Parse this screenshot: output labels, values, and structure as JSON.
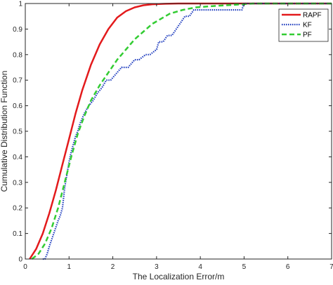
{
  "chart_data": {
    "type": "line",
    "title": "",
    "xlabel": "The Localization Error/m",
    "ylabel": "Cumulative Distribution Function",
    "xlim": [
      0,
      7
    ],
    "ylim": [
      0,
      1
    ],
    "xticks": [
      0,
      1,
      2,
      3,
      4,
      5,
      6,
      7
    ],
    "yticks": [
      0,
      0.1,
      0.2,
      0.3,
      0.4,
      0.5,
      0.6,
      0.7,
      0.8,
      0.9,
      1
    ],
    "grid": false,
    "legend_position": "top-right",
    "series": [
      {
        "name": "RAPF",
        "color": "#e31a1c",
        "style": "solid",
        "x": [
          0.1,
          0.25,
          0.4,
          0.55,
          0.7,
          0.85,
          1.0,
          1.15,
          1.3,
          1.5,
          1.7,
          1.9,
          2.1,
          2.3,
          2.5,
          2.7,
          2.9,
          3.2,
          3.5,
          4.0,
          5.0,
          7.0
        ],
        "y": [
          0.0,
          0.04,
          0.1,
          0.18,
          0.27,
          0.37,
          0.47,
          0.57,
          0.66,
          0.76,
          0.84,
          0.9,
          0.945,
          0.97,
          0.985,
          0.993,
          0.997,
          0.999,
          1.0,
          1.0,
          1.0,
          1.0
        ]
      },
      {
        "name": "KF",
        "color": "#1f3dbf",
        "style": "dotted",
        "x": [
          0.4,
          0.45,
          0.5,
          0.55,
          0.6,
          0.65,
          0.7,
          0.75,
          0.8,
          0.85,
          0.9,
          0.95,
          1.0,
          1.05,
          1.1,
          1.15,
          1.2,
          1.25,
          1.3,
          1.35,
          1.45,
          1.55,
          1.65,
          1.75,
          1.85,
          1.95,
          2.05,
          2.1,
          2.2,
          2.35,
          2.5,
          2.6,
          2.75,
          2.85,
          3.0,
          3.05,
          3.15,
          3.25,
          3.35,
          3.45,
          3.55,
          3.65,
          3.75,
          3.85,
          4.0,
          4.5,
          4.95,
          5.0,
          5.1,
          7.0
        ],
        "y": [
          0.0,
          0.0,
          0.02,
          0.05,
          0.075,
          0.1,
          0.125,
          0.15,
          0.17,
          0.2,
          0.28,
          0.33,
          0.38,
          0.42,
          0.45,
          0.48,
          0.5,
          0.53,
          0.55,
          0.57,
          0.6,
          0.62,
          0.65,
          0.67,
          0.7,
          0.7,
          0.72,
          0.73,
          0.75,
          0.75,
          0.78,
          0.78,
          0.8,
          0.8,
          0.82,
          0.85,
          0.85,
          0.875,
          0.875,
          0.9,
          0.925,
          0.95,
          0.95,
          0.975,
          0.975,
          0.975,
          0.975,
          1.0,
          1.0,
          1.0
        ]
      },
      {
        "name": "PF",
        "color": "#33cc33",
        "style": "dashed",
        "x": [
          0.15,
          0.3,
          0.45,
          0.6,
          0.75,
          0.9,
          1.05,
          1.2,
          1.35,
          1.5,
          1.7,
          1.9,
          2.1,
          2.3,
          2.5,
          2.7,
          2.9,
          3.1,
          3.3,
          3.6,
          3.9,
          4.3,
          4.8,
          5.2,
          6.0,
          7.0
        ],
        "y": [
          0.0,
          0.02,
          0.06,
          0.12,
          0.2,
          0.3,
          0.4,
          0.49,
          0.56,
          0.62,
          0.68,
          0.73,
          0.78,
          0.82,
          0.86,
          0.89,
          0.92,
          0.94,
          0.96,
          0.975,
          0.985,
          0.99,
          0.995,
          1.0,
          1.0,
          1.0
        ]
      }
    ]
  }
}
